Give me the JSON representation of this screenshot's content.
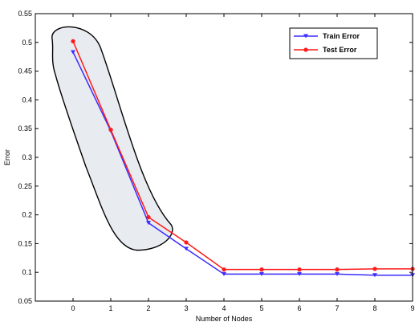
{
  "chart_data": {
    "type": "line",
    "title": "",
    "xlabel": "Number of Nodes",
    "ylabel": "Error",
    "xlim": [
      -1,
      9
    ],
    "ylim": [
      0.05,
      0.55
    ],
    "x": [
      0,
      1,
      2,
      3,
      4,
      5,
      6,
      7,
      8,
      9
    ],
    "xticks": [
      "0",
      "1",
      "2",
      "3",
      "4",
      "5",
      "6",
      "7",
      "8",
      "9"
    ],
    "yticks": [
      "0.05",
      "0.1",
      "0.15",
      "0.2",
      "0.25",
      "0.3",
      "0.35",
      "0.4",
      "0.45",
      "0.5",
      "0.55"
    ],
    "grid": false,
    "legend_position": "top-right",
    "series": [
      {
        "name": "Train Error",
        "color": "#3b2bff",
        "marker": "triangle-down",
        "values": [
          0.483,
          0.346,
          0.186,
          0.141,
          0.097,
          0.097,
          0.097,
          0.097,
          0.095,
          0.095
        ]
      },
      {
        "name": "Test Error",
        "color": "#ff1a1a",
        "marker": "star",
        "values": [
          0.502,
          0.348,
          0.196,
          0.152,
          0.105,
          0.105,
          0.105,
          0.105,
          0.106,
          0.106
        ]
      }
    ],
    "annotations": [
      {
        "type": "ellipse-highlight",
        "covers_x": [
          0,
          2
        ],
        "fill": "#e8ebf0",
        "stroke": "#000000"
      }
    ]
  }
}
